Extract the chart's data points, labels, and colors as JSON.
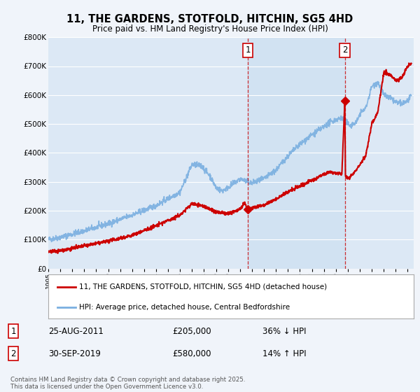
{
  "title": "11, THE GARDENS, STOTFOLD, HITCHIN, SG5 4HD",
  "subtitle": "Price paid vs. HM Land Registry's House Price Index (HPI)",
  "background_color": "#f0f4fa",
  "plot_bg_color": "#dce8f5",
  "shade_color": "#c8ddf0",
  "legend_line1": "11, THE GARDENS, STOTFOLD, HITCHIN, SG5 4HD (detached house)",
  "legend_line2": "HPI: Average price, detached house, Central Bedfordshire",
  "annotation1_label": "1",
  "annotation1_date": "25-AUG-2011",
  "annotation1_price": "£205,000",
  "annotation1_hpi": "36% ↓ HPI",
  "annotation2_label": "2",
  "annotation2_date": "30-SEP-2019",
  "annotation2_price": "£580,000",
  "annotation2_hpi": "14% ↑ HPI",
  "footer": "Contains HM Land Registry data © Crown copyright and database right 2025.\nThis data is licensed under the Open Government Licence v3.0.",
  "sale1_x": 2011.65,
  "sale1_y": 205000,
  "sale2_x": 2019.75,
  "sale2_y": 580000,
  "vline1_x": 2011.65,
  "vline2_x": 2019.75,
  "red_color": "#cc0000",
  "blue_color": "#7aafe0",
  "ylim": [
    0,
    800000
  ],
  "xlim_start": 1995.0,
  "xlim_end": 2025.5
}
